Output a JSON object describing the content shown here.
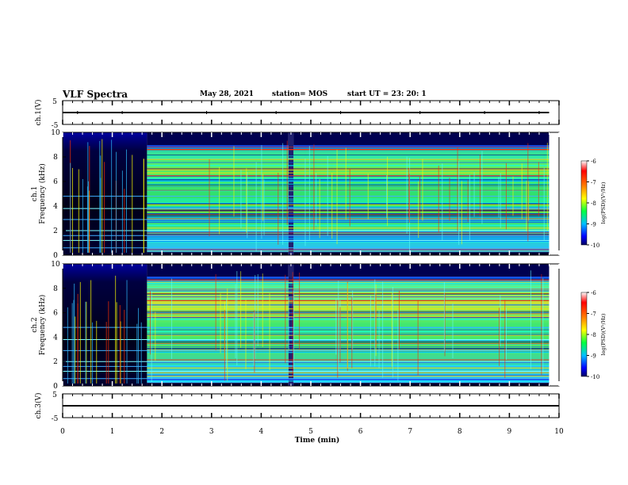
{
  "header": {
    "title": "VLF Spectra",
    "date": "May 28, 2021",
    "station": "station= MOS",
    "start": "start  UT  =   23: 20: 1"
  },
  "chart_data": [
    {
      "type": "line",
      "panel": "ch1-voltage",
      "ylabel": "ch.1(V)",
      "yticks": [
        "5",
        "-5"
      ],
      "ylim": [
        -5,
        5
      ],
      "xlim": [
        0,
        10
      ],
      "x": [
        0,
        10
      ],
      "values": [
        0,
        0
      ]
    },
    {
      "type": "heatmap",
      "panel": "ch1-spectrogram",
      "ylabel": "ch.1\nFrequency (kHz)",
      "yticks": [
        "0",
        "2",
        "4",
        "6",
        "8",
        "10"
      ],
      "ylim": [
        0,
        10
      ],
      "xlim": [
        0,
        10
      ],
      "data_segments": [
        [
          0,
          1.7
        ],
        [
          1.7,
          4.55
        ],
        [
          4.55,
          4.65
        ],
        [
          4.65,
          9.8
        ]
      ],
      "colorbar": {
        "label": "log(PSD)(V²/Hz)",
        "ticks": [
          "-6",
          "-7",
          "-8",
          "-9",
          "-10"
        ],
        "range": [
          -10,
          -6
        ]
      }
    },
    {
      "type": "heatmap",
      "panel": "ch2-spectrogram",
      "ylabel": "ch.2\nFrequency (kHz)",
      "yticks": [
        "0",
        "2",
        "4",
        "6",
        "8",
        "10"
      ],
      "ylim": [
        0,
        10
      ],
      "xlim": [
        0,
        10
      ],
      "data_segments": [
        [
          0,
          1.7
        ],
        [
          1.7,
          4.55
        ],
        [
          4.55,
          4.65
        ],
        [
          4.65,
          9.8
        ]
      ],
      "colorbar": {
        "label": "log(PSD)(V²/Hz)",
        "ticks": [
          "-6",
          "-7",
          "-8",
          "-9",
          "-10"
        ],
        "range": [
          -10,
          -6
        ]
      }
    },
    {
      "type": "line",
      "panel": "ch3-voltage",
      "ylabel": "ch.3(V)",
      "yticks": [
        "5",
        "-5"
      ],
      "ylim": [
        -5,
        5
      ],
      "xlim": [
        0,
        10
      ],
      "x": [
        0,
        10
      ],
      "values": [
        0,
        0
      ]
    }
  ],
  "x_axis": {
    "label": "Time  (min)",
    "ticks": [
      "0",
      "1",
      "2",
      "3",
      "4",
      "5",
      "6",
      "7",
      "8",
      "9",
      "10"
    ]
  },
  "colors": {
    "colormap": [
      "#000080",
      "#0000ff",
      "#00a0ff",
      "#00ffff",
      "#00ff80",
      "#80ff00",
      "#ffff00",
      "#ff8000",
      "#ff0000",
      "#ffffff"
    ]
  }
}
